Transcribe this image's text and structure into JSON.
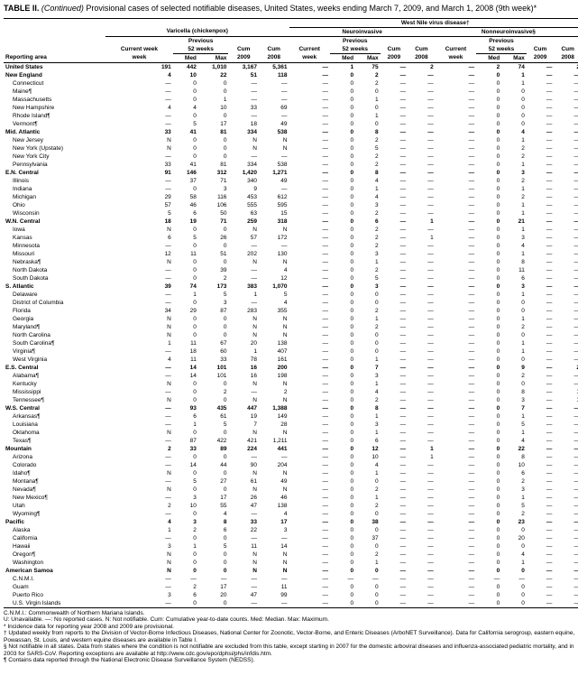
{
  "title_prefix": "TABLE II. ",
  "title_italic": "(Continued)",
  "title_rest": " Provisional cases of selected notifiable diseases, United States, weeks ending March 7, 2009, and March 1, 2008 (9th week)*",
  "super_header": "West Nile virus disease†",
  "diseases": {
    "varicella": "Varicella (chickenpox)",
    "neuro": "Neuroinvasive",
    "nonneuro": "Nonneuroinvasive§"
  },
  "subheaders": {
    "previous": "Previous",
    "weeks52": "52 weeks"
  },
  "cols": {
    "area": "Reporting area",
    "current": "Current week",
    "med": "Med",
    "max": "Max",
    "cum09": "Cum 2009",
    "cum08": "Cum 2008"
  },
  "em": "—",
  "rows": [
    {
      "b": 1,
      "n": "United States",
      "v": [
        "191",
        "442",
        "1,010",
        "3,167",
        "5,361",
        "—",
        "1",
        "75",
        "—",
        "2",
        "—",
        "2",
        "74",
        "—",
        "2"
      ]
    },
    {
      "b": 1,
      "n": "New England",
      "v": [
        "4",
        "10",
        "22",
        "51",
        "118",
        "—",
        "0",
        "2",
        "—",
        "—",
        "—",
        "0",
        "1",
        "—",
        "—"
      ]
    },
    {
      "n": "Connecticut",
      "v": [
        "—",
        "0",
        "0",
        "—",
        "—",
        "—",
        "0",
        "2",
        "—",
        "—",
        "—",
        "0",
        "1",
        "—",
        "—"
      ]
    },
    {
      "n": "Maine¶",
      "v": [
        "—",
        "0",
        "0",
        "—",
        "—",
        "—",
        "0",
        "0",
        "—",
        "—",
        "—",
        "0",
        "0",
        "—",
        "—"
      ]
    },
    {
      "n": "Massachusetts",
      "v": [
        "—",
        "0",
        "1",
        "—",
        "—",
        "—",
        "0",
        "1",
        "—",
        "—",
        "—",
        "0",
        "0",
        "—",
        "—"
      ]
    },
    {
      "n": "New Hampshire",
      "v": [
        "4",
        "4",
        "10",
        "33",
        "69",
        "—",
        "0",
        "0",
        "—",
        "—",
        "—",
        "0",
        "0",
        "—",
        "—"
      ]
    },
    {
      "n": "Rhode Island¶",
      "v": [
        "—",
        "0",
        "0",
        "—",
        "—",
        "—",
        "0",
        "1",
        "—",
        "—",
        "—",
        "0",
        "0",
        "—",
        "—"
      ]
    },
    {
      "n": "Vermont¶",
      "v": [
        "—",
        "5",
        "17",
        "18",
        "49",
        "—",
        "0",
        "0",
        "—",
        "—",
        "—",
        "0",
        "0",
        "—",
        "—"
      ]
    },
    {
      "b": 1,
      "n": "Mid. Atlantic",
      "v": [
        "33",
        "41",
        "81",
        "334",
        "538",
        "—",
        "0",
        "8",
        "—",
        "—",
        "—",
        "0",
        "4",
        "—",
        "—"
      ]
    },
    {
      "n": "New Jersey",
      "v": [
        "N",
        "0",
        "0",
        "N",
        "N",
        "—",
        "0",
        "2",
        "—",
        "—",
        "—",
        "0",
        "1",
        "—",
        "—"
      ]
    },
    {
      "n": "New York (Upstate)",
      "v": [
        "N",
        "0",
        "0",
        "N",
        "N",
        "—",
        "0",
        "5",
        "—",
        "—",
        "—",
        "0",
        "2",
        "—",
        "—"
      ]
    },
    {
      "n": "New York City",
      "v": [
        "—",
        "0",
        "0",
        "—",
        "—",
        "—",
        "0",
        "2",
        "—",
        "—",
        "—",
        "0",
        "2",
        "—",
        "—"
      ]
    },
    {
      "n": "Pennsylvania",
      "v": [
        "33",
        "41",
        "81",
        "334",
        "538",
        "—",
        "0",
        "2",
        "—",
        "—",
        "—",
        "0",
        "1",
        "—",
        "—"
      ]
    },
    {
      "b": 1,
      "n": "E.N. Central",
      "v": [
        "91",
        "146",
        "312",
        "1,420",
        "1,271",
        "—",
        "0",
        "8",
        "—",
        "—",
        "—",
        "0",
        "3",
        "—",
        "—"
      ]
    },
    {
      "n": "Illinois",
      "v": [
        "—",
        "37",
        "71",
        "340",
        "49",
        "—",
        "0",
        "4",
        "—",
        "—",
        "—",
        "0",
        "2",
        "—",
        "—"
      ]
    },
    {
      "n": "Indiana",
      "v": [
        "—",
        "0",
        "3",
        "9",
        "—",
        "—",
        "0",
        "1",
        "—",
        "—",
        "—",
        "0",
        "1",
        "—",
        "—"
      ]
    },
    {
      "n": "Michigan",
      "v": [
        "29",
        "58",
        "116",
        "453",
        "612",
        "—",
        "0",
        "4",
        "—",
        "—",
        "—",
        "0",
        "2",
        "—",
        "—"
      ]
    },
    {
      "n": "Ohio",
      "v": [
        "57",
        "46",
        "106",
        "555",
        "595",
        "—",
        "0",
        "3",
        "—",
        "—",
        "—",
        "0",
        "1",
        "—",
        "—"
      ]
    },
    {
      "n": "Wisconsin",
      "v": [
        "5",
        "6",
        "50",
        "63",
        "15",
        "—",
        "0",
        "2",
        "—",
        "—",
        "—",
        "0",
        "1",
        "—",
        "—"
      ]
    },
    {
      "b": 1,
      "n": "W.N. Central",
      "v": [
        "18",
        "19",
        "71",
        "259",
        "318",
        "—",
        "0",
        "6",
        "—",
        "1",
        "—",
        "0",
        "21",
        "—",
        "—"
      ]
    },
    {
      "n": "Iowa",
      "v": [
        "N",
        "0",
        "0",
        "N",
        "N",
        "—",
        "0",
        "2",
        "—",
        "—",
        "—",
        "0",
        "1",
        "—",
        "—"
      ]
    },
    {
      "n": "Kansas",
      "v": [
        "6",
        "5",
        "26",
        "57",
        "172",
        "—",
        "0",
        "2",
        "—",
        "1",
        "—",
        "0",
        "3",
        "—",
        "—"
      ]
    },
    {
      "n": "Minnesota",
      "v": [
        "—",
        "0",
        "0",
        "—",
        "—",
        "—",
        "0",
        "2",
        "—",
        "—",
        "—",
        "0",
        "4",
        "—",
        "—"
      ]
    },
    {
      "n": "Missouri",
      "v": [
        "12",
        "11",
        "51",
        "202",
        "130",
        "—",
        "0",
        "3",
        "—",
        "—",
        "—",
        "0",
        "1",
        "—",
        "—"
      ]
    },
    {
      "n": "Nebraska¶",
      "v": [
        "N",
        "0",
        "0",
        "N",
        "N",
        "—",
        "0",
        "1",
        "—",
        "—",
        "—",
        "0",
        "8",
        "—",
        "—"
      ]
    },
    {
      "n": "North Dakota",
      "v": [
        "—",
        "0",
        "39",
        "—",
        "4",
        "—",
        "0",
        "2",
        "—",
        "—",
        "—",
        "0",
        "11",
        "—",
        "—"
      ]
    },
    {
      "n": "South Dakota",
      "v": [
        "—",
        "0",
        "2",
        "—",
        "12",
        "—",
        "0",
        "5",
        "—",
        "—",
        "—",
        "0",
        "6",
        "—",
        "—"
      ]
    },
    {
      "b": 1,
      "n": "S. Atlantic",
      "v": [
        "39",
        "74",
        "173",
        "383",
        "1,070",
        "—",
        "0",
        "3",
        "—",
        "—",
        "—",
        "0",
        "3",
        "—",
        "—"
      ]
    },
    {
      "n": "Delaware",
      "v": [
        "—",
        "1",
        "5",
        "1",
        "5",
        "—",
        "0",
        "0",
        "—",
        "—",
        "—",
        "0",
        "1",
        "—",
        "—"
      ]
    },
    {
      "n": "District of Columbia",
      "v": [
        "—",
        "0",
        "3",
        "—",
        "4",
        "—",
        "0",
        "0",
        "—",
        "—",
        "—",
        "0",
        "0",
        "—",
        "—"
      ]
    },
    {
      "n": "Florida",
      "v": [
        "34",
        "29",
        "87",
        "283",
        "355",
        "—",
        "0",
        "2",
        "—",
        "—",
        "—",
        "0",
        "0",
        "—",
        "—"
      ]
    },
    {
      "n": "Georgia",
      "v": [
        "N",
        "0",
        "0",
        "N",
        "N",
        "—",
        "0",
        "1",
        "—",
        "—",
        "—",
        "0",
        "1",
        "—",
        "—"
      ]
    },
    {
      "n": "Maryland¶",
      "v": [
        "N",
        "0",
        "0",
        "N",
        "N",
        "—",
        "0",
        "2",
        "—",
        "—",
        "—",
        "0",
        "2",
        "—",
        "—"
      ]
    },
    {
      "n": "North Carolina",
      "v": [
        "N",
        "0",
        "0",
        "N",
        "N",
        "—",
        "0",
        "0",
        "—",
        "—",
        "—",
        "0",
        "0",
        "—",
        "—"
      ]
    },
    {
      "n": "South Carolina¶",
      "v": [
        "1",
        "11",
        "67",
        "20",
        "138",
        "—",
        "0",
        "0",
        "—",
        "—",
        "—",
        "0",
        "1",
        "—",
        "—"
      ]
    },
    {
      "n": "Virginia¶",
      "v": [
        "—",
        "18",
        "60",
        "1",
        "407",
        "—",
        "0",
        "0",
        "—",
        "—",
        "—",
        "0",
        "1",
        "—",
        "—"
      ]
    },
    {
      "n": "West Virginia",
      "v": [
        "4",
        "11",
        "33",
        "78",
        "161",
        "—",
        "0",
        "1",
        "—",
        "—",
        "—",
        "0",
        "0",
        "—",
        "—"
      ]
    },
    {
      "b": 1,
      "n": "E.S. Central",
      "v": [
        "—",
        "14",
        "101",
        "16",
        "200",
        "—",
        "0",
        "7",
        "—",
        "—",
        "—",
        "0",
        "9",
        "—",
        "2"
      ]
    },
    {
      "n": "Alabama¶",
      "v": [
        "—",
        "14",
        "101",
        "16",
        "198",
        "—",
        "0",
        "3",
        "—",
        "—",
        "—",
        "0",
        "2",
        "—",
        "—"
      ]
    },
    {
      "n": "Kentucky",
      "v": [
        "N",
        "0",
        "0",
        "N",
        "N",
        "—",
        "0",
        "1",
        "—",
        "—",
        "—",
        "0",
        "0",
        "—",
        "—"
      ]
    },
    {
      "n": "Mississippi",
      "v": [
        "—",
        "0",
        "2",
        "—",
        "2",
        "—",
        "0",
        "4",
        "—",
        "—",
        "—",
        "0",
        "8",
        "—",
        "1"
      ]
    },
    {
      "n": "Tennessee¶",
      "v": [
        "N",
        "0",
        "0",
        "N",
        "N",
        "—",
        "0",
        "2",
        "—",
        "—",
        "—",
        "0",
        "3",
        "—",
        "1"
      ]
    },
    {
      "b": 1,
      "n": "W.S. Central",
      "v": [
        "—",
        "93",
        "435",
        "447",
        "1,388",
        "—",
        "0",
        "8",
        "—",
        "—",
        "—",
        "0",
        "7",
        "—",
        "—"
      ]
    },
    {
      "n": "Arkansas¶",
      "v": [
        "—",
        "6",
        "61",
        "19",
        "149",
        "—",
        "0",
        "1",
        "—",
        "—",
        "—",
        "0",
        "1",
        "—",
        "—"
      ]
    },
    {
      "n": "Louisiana",
      "v": [
        "—",
        "1",
        "5",
        "7",
        "28",
        "—",
        "0",
        "3",
        "—",
        "—",
        "—",
        "0",
        "5",
        "—",
        "—"
      ]
    },
    {
      "n": "Oklahoma",
      "v": [
        "N",
        "0",
        "0",
        "N",
        "N",
        "—",
        "0",
        "1",
        "—",
        "—",
        "—",
        "0",
        "1",
        "—",
        "—"
      ]
    },
    {
      "n": "Texas¶",
      "v": [
        "—",
        "87",
        "422",
        "421",
        "1,211",
        "—",
        "0",
        "6",
        "—",
        "—",
        "—",
        "0",
        "4",
        "—",
        "—"
      ]
    },
    {
      "b": 1,
      "n": "Mountain",
      "v": [
        "2",
        "33",
        "89",
        "224",
        "441",
        "—",
        "0",
        "12",
        "—",
        "1",
        "—",
        "0",
        "22",
        "—",
        "—"
      ]
    },
    {
      "n": "Arizona",
      "v": [
        "—",
        "0",
        "0",
        "—",
        "—",
        "—",
        "0",
        "10",
        "—",
        "1",
        "—",
        "0",
        "8",
        "—",
        "—"
      ]
    },
    {
      "n": "Colorado",
      "v": [
        "—",
        "14",
        "44",
        "90",
        "204",
        "—",
        "0",
        "4",
        "—",
        "—",
        "—",
        "0",
        "10",
        "—",
        "—"
      ]
    },
    {
      "n": "Idaho¶",
      "v": [
        "N",
        "0",
        "0",
        "N",
        "N",
        "—",
        "0",
        "1",
        "—",
        "—",
        "—",
        "0",
        "6",
        "—",
        "—"
      ]
    },
    {
      "n": "Montana¶",
      "v": [
        "—",
        "5",
        "27",
        "61",
        "49",
        "—",
        "0",
        "0",
        "—",
        "—",
        "—",
        "0",
        "2",
        "—",
        "—"
      ]
    },
    {
      "n": "Nevada¶",
      "v": [
        "N",
        "0",
        "0",
        "N",
        "N",
        "—",
        "0",
        "2",
        "—",
        "—",
        "—",
        "0",
        "3",
        "—",
        "—"
      ]
    },
    {
      "n": "New Mexico¶",
      "v": [
        "—",
        "3",
        "17",
        "26",
        "46",
        "—",
        "0",
        "1",
        "—",
        "—",
        "—",
        "0",
        "1",
        "—",
        "—"
      ]
    },
    {
      "n": "Utah",
      "v": [
        "2",
        "10",
        "55",
        "47",
        "138",
        "—",
        "0",
        "2",
        "—",
        "—",
        "—",
        "0",
        "5",
        "—",
        "—"
      ]
    },
    {
      "n": "Wyoming¶",
      "v": [
        "—",
        "0",
        "4",
        "—",
        "4",
        "—",
        "0",
        "0",
        "—",
        "—",
        "—",
        "0",
        "2",
        "—",
        "—"
      ]
    },
    {
      "b": 1,
      "n": "Pacific",
      "v": [
        "4",
        "3",
        "8",
        "33",
        "17",
        "—",
        "0",
        "38",
        "—",
        "—",
        "—",
        "0",
        "23",
        "—",
        "—"
      ]
    },
    {
      "n": "Alaska",
      "v": [
        "1",
        "2",
        "6",
        "22",
        "3",
        "—",
        "0",
        "0",
        "—",
        "—",
        "—",
        "0",
        "0",
        "—",
        "—"
      ]
    },
    {
      "n": "California",
      "v": [
        "—",
        "0",
        "0",
        "—",
        "—",
        "—",
        "0",
        "37",
        "—",
        "—",
        "—",
        "0",
        "20",
        "—",
        "—"
      ]
    },
    {
      "n": "Hawaii",
      "v": [
        "3",
        "1",
        "5",
        "11",
        "14",
        "—",
        "0",
        "0",
        "—",
        "—",
        "—",
        "0",
        "0",
        "—",
        "—"
      ]
    },
    {
      "n": "Oregon¶",
      "v": [
        "N",
        "0",
        "0",
        "N",
        "N",
        "—",
        "0",
        "2",
        "—",
        "—",
        "—",
        "0",
        "4",
        "—",
        "—"
      ]
    },
    {
      "n": "Washington",
      "v": [
        "N",
        "0",
        "0",
        "N",
        "N",
        "—",
        "0",
        "1",
        "—",
        "—",
        "—",
        "0",
        "1",
        "—",
        "—"
      ]
    },
    {
      "b": 1,
      "n": "American Samoa",
      "v": [
        "N",
        "0",
        "0",
        "N",
        "N",
        "—",
        "0",
        "0",
        "—",
        "—",
        "—",
        "0",
        "0",
        "—",
        "—"
      ]
    },
    {
      "n": "C.N.M.I.",
      "v": [
        "—",
        "—",
        "—",
        "—",
        "—",
        "—",
        "—",
        "—",
        "—",
        "—",
        "—",
        "—",
        "—",
        "—",
        "—"
      ]
    },
    {
      "n": "Guam",
      "v": [
        "—",
        "2",
        "17",
        "—",
        "11",
        "—",
        "0",
        "0",
        "—",
        "—",
        "—",
        "0",
        "0",
        "—",
        "—"
      ]
    },
    {
      "n": "Puerto Rico",
      "v": [
        "3",
        "6",
        "20",
        "47",
        "99",
        "—",
        "0",
        "0",
        "—",
        "—",
        "—",
        "0",
        "0",
        "—",
        "—"
      ]
    },
    {
      "n": "U.S. Virgin Islands",
      "v": [
        "—",
        "0",
        "0",
        "—",
        "—",
        "—",
        "0",
        "0",
        "—",
        "—",
        "—",
        "0",
        "0",
        "—",
        "—"
      ]
    }
  ],
  "footnotes": [
    "C.N.M.I.: Commonwealth of Northern Mariana Islands.",
    "U: Unavailable.    —: No reported cases.    N: Not notifiable.    Cum: Cumulative year-to-date counts.    Med: Median.    Max: Maximum.",
    "* Incidence data for reporting year 2008 and 2009 are provisional.",
    "† Updated weekly from reports to the Division of Vector-Borne Infectious Diseases, National Center for Zoonotic, Vector-Borne, and Enteric Diseases (ArboNET Surveillance). Data for California serogroup, eastern equine, Powassan, St. Louis, and western equine diseases are available in Table I.",
    "§ Not notifiable in all states. Data from states where the condition is not notifiable are excluded from this table, except starting in 2007 for the domestic arboviral diseases and influenza-associated pediatric mortality, and in 2003 for SARS-CoV. Reporting exceptions are available at http://www.cdc.gov/epo/dphsi/phs/infdis.htm.",
    "¶ Contains data reported through the National Electronic Disease Surveillance System (NEDSS)."
  ]
}
